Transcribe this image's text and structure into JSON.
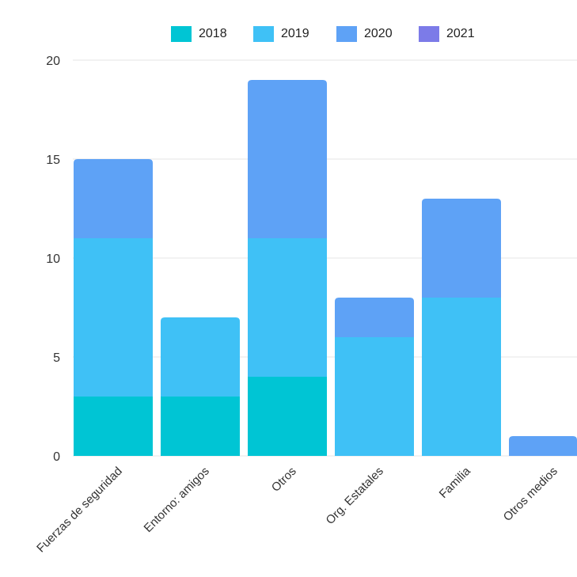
{
  "chart_data": {
    "type": "bar",
    "stacked": true,
    "categories": [
      "Fuerzas de seguridad",
      "Entorno: amigos",
      "Otros",
      "Org. Estatales",
      "Familia",
      "Otros medios"
    ],
    "series": [
      {
        "name": "2018",
        "color": "#00c5d4",
        "values": [
          3,
          3,
          4,
          0,
          0,
          0
        ]
      },
      {
        "name": "2019",
        "color": "#3fc1f6",
        "values": [
          8,
          4,
          7,
          6,
          8,
          0
        ]
      },
      {
        "name": "2020",
        "color": "#5ea2f6",
        "values": [
          4,
          0,
          8,
          2,
          5,
          1
        ]
      },
      {
        "name": "2021",
        "color": "#7c7be8",
        "values": [
          0,
          0,
          0,
          0,
          0,
          0
        ]
      }
    ],
    "ylim": [
      0,
      20
    ],
    "yticks": [
      "0",
      "5",
      "10",
      "15",
      "20"
    ],
    "grid": true,
    "legend": "top",
    "title": "",
    "xlabel": "",
    "ylabel": ""
  }
}
